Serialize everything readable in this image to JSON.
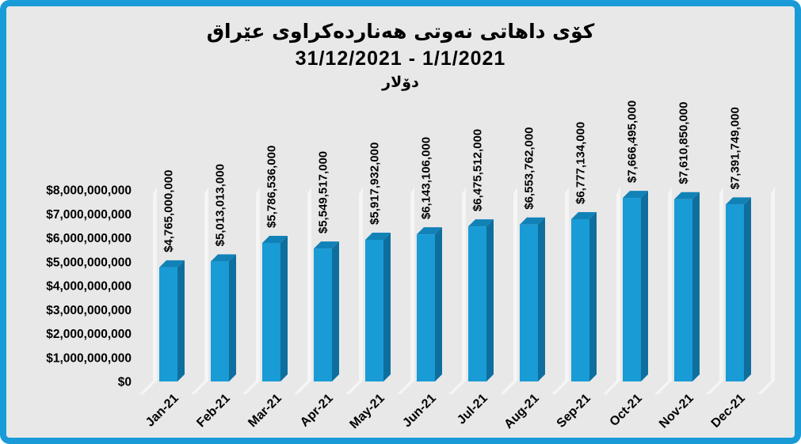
{
  "frame": {
    "border_color": "#189BD7",
    "background_color": "#E8E8E8"
  },
  "title": {
    "line1": "کۆی داهاتی نەوتی هەناردەکراوی عێراق",
    "line2": "31/12/2021 - 1/1/2021",
    "line3": "دۆلار"
  },
  "chart_data": {
    "type": "bar",
    "style": "3d-column",
    "title": "کۆی داهاتی نەوتی هەناردەکراوی عێراق",
    "subtitle": "31/12/2021 - 1/1/2021",
    "unit_label": "دۆلار",
    "categories": [
      "Jan-21",
      "Feb-21",
      "Mar-21",
      "Apr-21",
      "May-21",
      "Jun-21",
      "Jul-21",
      "Aug-21",
      "Sep-21",
      "Oct-21",
      "Nov-21",
      "Dec-21"
    ],
    "values": [
      4765000000,
      5013013000,
      5786536000,
      5549517000,
      5917932000,
      6143106000,
      6475512000,
      6553762000,
      6777134000,
      7666495000,
      7610850000,
      7391749000
    ],
    "value_labels": [
      "$4,765,000,000",
      "$5,013,013,000",
      "$5,786,536,000",
      "$5,549,517,000",
      "$5,917,932,000",
      "$6,143,106,000",
      "$6,475,512,000",
      "$6,553,762,000",
      "$6,777,134,000",
      "$7,666,495,000",
      "$7,610,850,000",
      "$7,391,749,000"
    ],
    "y_ticks": [
      {
        "label": "$8,000,000,000",
        "value": 8000000000
      },
      {
        "label": "$7,000,000,000",
        "value": 7000000000
      },
      {
        "label": "$6,000,000,000",
        "value": 6000000000
      },
      {
        "label": "$5,000,000,000",
        "value": 5000000000
      },
      {
        "label": "$4,000,000,000",
        "value": 4000000000
      },
      {
        "label": "$3,000,000,000",
        "value": 3000000000
      },
      {
        "label": "$2,000,000,000",
        "value": 2000000000
      },
      {
        "label": "$1,000,000,000",
        "value": 1000000000
      },
      {
        "label": "$0",
        "value": 0
      }
    ],
    "ylim": [
      0,
      8000000000
    ],
    "legend": "none",
    "grid": "vertical-strips-3d",
    "colors": {
      "bar_front": "#199BD6",
      "bar_top": "#1182B7",
      "bar_side": "#0E6F9E",
      "strip": "#F6F6F6",
      "label": "#000000"
    }
  }
}
